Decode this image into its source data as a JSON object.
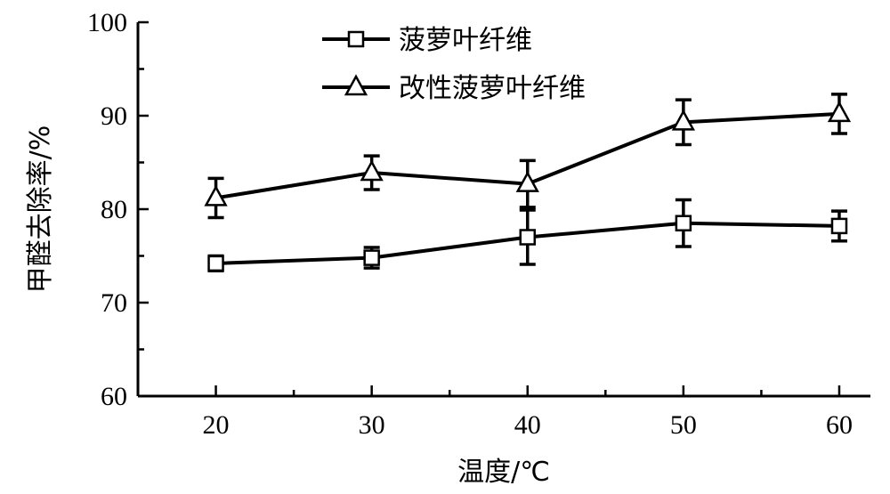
{
  "chart_data": {
    "type": "line",
    "title": "",
    "xlabel": "温度/℃",
    "ylabel": "甲醛去除率/%",
    "x": [
      20,
      30,
      40,
      50,
      60
    ],
    "xticks": [
      "20",
      "30",
      "40",
      "50",
      "60"
    ],
    "xlim": [
      15,
      62
    ],
    "ylim": [
      60,
      100
    ],
    "yticks": [
      "60",
      "70",
      "80",
      "90",
      "100"
    ],
    "grid": false,
    "legend_position": "top-center",
    "series": [
      {
        "name": "菠萝叶纤维",
        "marker": "square",
        "values": [
          74.2,
          74.8,
          77.0,
          78.5,
          78.2
        ],
        "errors": [
          0.8,
          1.1,
          2.9,
          2.5,
          1.6
        ]
      },
      {
        "name": "改性菠萝叶纤维",
        "marker": "triangle",
        "values": [
          81.2,
          83.9,
          82.7,
          89.3,
          90.2
        ],
        "errors": [
          2.1,
          1.8,
          2.5,
          2.4,
          2.1
        ]
      }
    ]
  }
}
